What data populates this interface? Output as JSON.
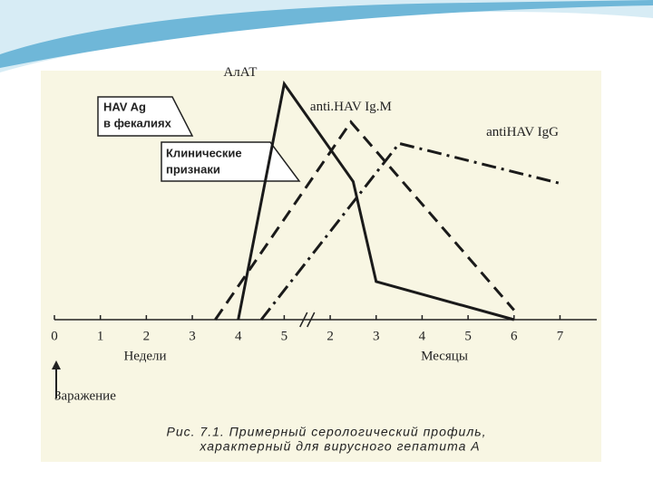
{
  "chart_data": {
    "type": "line",
    "caption": [
      "Рис. 7.1. Примерный серологический профиль,",
      "характерный для вирусного гепатита А"
    ],
    "x_label_left": "Недели",
    "x_label_right": "Месяцы",
    "infection_label": "Заражение",
    "box_labels": [
      [
        "HAV Ag",
        "в фекалиях"
      ],
      [
        "Клинические",
        "признаки"
      ]
    ],
    "xlim": [
      0,
      11.8
    ],
    "ylim": [
      0,
      100
    ],
    "xticks": [
      0,
      1,
      2,
      3,
      4,
      5,
      {
        "value": 6,
        "label": "2"
      },
      {
        "value": 7,
        "label": "3"
      },
      {
        "value": 8,
        "label": "4"
      },
      {
        "value": 9,
        "label": "5"
      },
      {
        "value": 10,
        "label": "6"
      },
      {
        "value": 11,
        "label": "7"
      }
    ],
    "series": [
      {
        "name": "АлАТ",
        "color": "#1a1a1a",
        "style": "solid",
        "x": [
          4,
          5,
          6.5,
          7,
          10
        ],
        "values": [
          0,
          99,
          58,
          16,
          0
        ]
      },
      {
        "name": "anti.HAV Ig.M",
        "color": "#1a1a1a",
        "style": "dashed",
        "x": [
          3.5,
          6.45,
          10
        ],
        "values": [
          0,
          83,
          4
        ]
      },
      {
        "name": "antiHAV IgG",
        "color": "#1a1a1a",
        "style": "dashdot",
        "x": [
          4.5,
          7.5,
          11.05
        ],
        "values": [
          0,
          74,
          57
        ]
      }
    ]
  }
}
